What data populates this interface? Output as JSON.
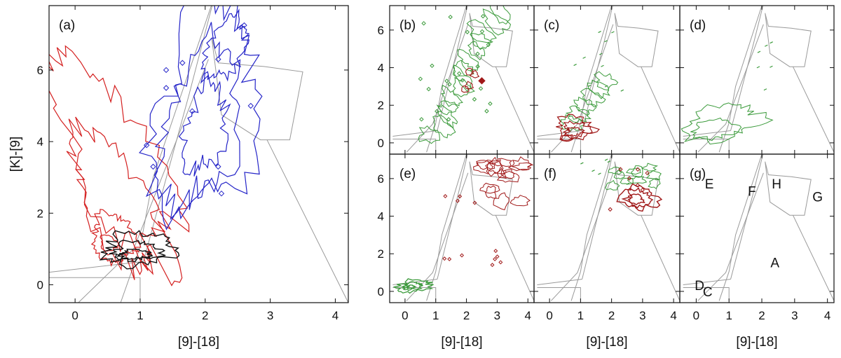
{
  "colors": {
    "red": "#d42020",
    "blue": "#2424c8",
    "black": "#111111",
    "green": "#3a9a3a",
    "darkred": "#a01818",
    "boundary": "#9a9a9a",
    "frame": "#111111"
  },
  "chart_data": [
    {
      "type": "contour",
      "panel": "(a)",
      "xlabel": "[9]-[18]",
      "ylabel": "[K]-[9]",
      "xlim": [
        -0.4,
        4.2
      ],
      "ylim": [
        -0.5,
        7.8
      ],
      "xticks": [
        "0",
        "1",
        "2",
        "3",
        "4"
      ],
      "yticks": [
        "0",
        "2",
        "4",
        "6"
      ],
      "series": [
        {
          "color": "red",
          "region": "blue-shifted left sequence, [9]-[18] -0.3 to 1.3, [K]-[9] 0 to 6.7"
        },
        {
          "color": "blue",
          "region": "diagonal sequence, [9]-[18] 1.1 to 2.8, [K]-[9] 2 to 7.8"
        },
        {
          "color": "black",
          "region": "compact cluster near [9]-[18] 0.5 to 1.5, [K]-[9] 0.5 to 2"
        }
      ]
    },
    {
      "type": "contour",
      "panel": "(b)",
      "xlabel": "",
      "xlim": [
        -0.5,
        4.2
      ],
      "ylim": [
        -0.6,
        7.3
      ],
      "yticks": [
        "0",
        "2",
        "4",
        "6"
      ],
      "series": [
        {
          "color": "green"
        },
        {
          "color": "darkred"
        }
      ]
    },
    {
      "type": "contour",
      "panel": "(c)",
      "xlim": [
        -0.5,
        4.2
      ],
      "ylim": [
        -0.6,
        7.3
      ],
      "series": [
        {
          "color": "green"
        },
        {
          "color": "darkred"
        }
      ]
    },
    {
      "type": "contour",
      "panel": "(d)",
      "xlim": [
        -0.5,
        4.2
      ],
      "ylim": [
        -0.6,
        7.3
      ],
      "series": [
        {
          "color": "green"
        }
      ]
    },
    {
      "type": "contour",
      "panel": "(e)",
      "xlabel": "[9]-[18]",
      "xlim": [
        -0.5,
        4.2
      ],
      "ylim": [
        -0.6,
        7.3
      ],
      "xticks": [
        "0",
        "1",
        "2",
        "3",
        "4"
      ],
      "yticks": [
        "0",
        "2",
        "4",
        "6"
      ],
      "series": [
        {
          "color": "green"
        },
        {
          "color": "darkred"
        }
      ]
    },
    {
      "type": "contour",
      "panel": "(f)",
      "xlabel": "[9]-[18]",
      "xlim": [
        -0.5,
        4.2
      ],
      "ylim": [
        -0.6,
        7.3
      ],
      "xticks": [
        "0",
        "1",
        "2",
        "3",
        "4"
      ],
      "series": [
        {
          "color": "green"
        },
        {
          "color": "darkred"
        }
      ]
    },
    {
      "type": "diagram",
      "panel": "(g)",
      "xlabel": "[9]-[18]",
      "xlim": [
        -0.5,
        4.2
      ],
      "ylim": [
        -0.6,
        7.3
      ],
      "xticks": [
        "0",
        "1",
        "2",
        "3",
        "4"
      ],
      "regions": [
        {
          "label": "E",
          "x": 0.4,
          "y": 5.7
        },
        {
          "label": "F",
          "x": 1.7,
          "y": 5.3
        },
        {
          "label": "H",
          "x": 2.45,
          "y": 5.7
        },
        {
          "label": "G",
          "x": 3.7,
          "y": 5.0
        },
        {
          "label": "A",
          "x": 2.4,
          "y": 1.5
        },
        {
          "label": "D",
          "x": 0.1,
          "y": 0.3
        },
        {
          "label": "C",
          "x": 0.35,
          "y": -0.05
        }
      ]
    }
  ]
}
